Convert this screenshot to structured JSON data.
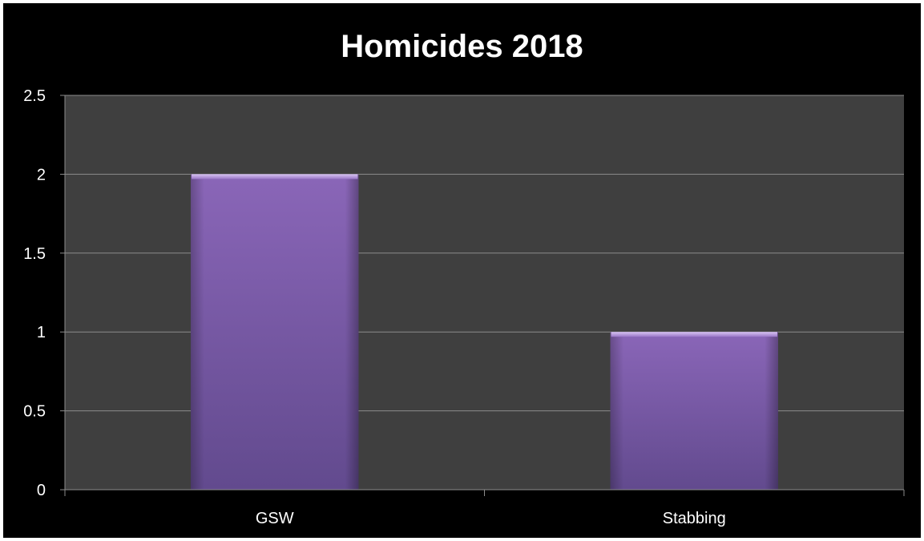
{
  "chart_data": {
    "type": "bar",
    "title": "Homicides 2018",
    "categories": [
      "GSW",
      "Stabbing"
    ],
    "values": [
      2,
      1
    ],
    "ylim": [
      0,
      2.5
    ],
    "y_ticks": [
      "0",
      "0.5",
      "1",
      "1.5",
      "2",
      "2.5"
    ],
    "grid": true,
    "legend": "none",
    "colors": {
      "frame_background": "#000000",
      "plot_background": "#3f3f3f",
      "gridline": "#8c8c8c",
      "bar_top": "#8a66b8",
      "bar_bottom": "#624a8e",
      "text": "#ffffff"
    }
  }
}
